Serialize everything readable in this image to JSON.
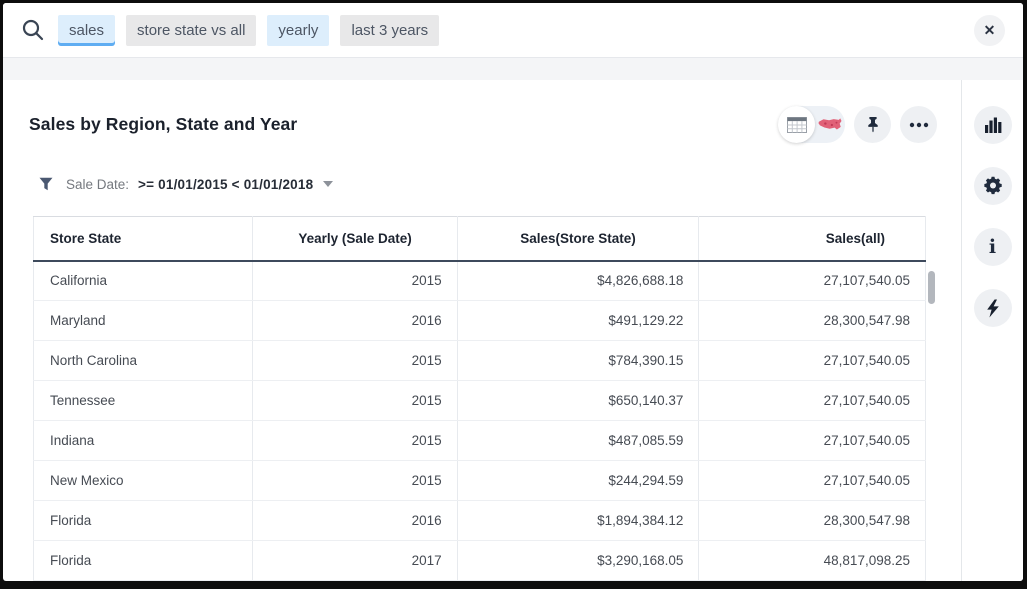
{
  "search_bar": {
    "tokens": [
      {
        "label": "sales",
        "style": "blue",
        "active": true
      },
      {
        "label": "store state vs all",
        "style": "gray",
        "active": false
      },
      {
        "label": "yearly",
        "style": "blue",
        "active": false
      },
      {
        "label": "last 3 years",
        "style": "gray",
        "active": false
      }
    ],
    "close_glyph": "✕"
  },
  "answer": {
    "title": "Sales by Region, State and Year",
    "filter": {
      "label": "Sale Date:",
      "value": ">= 01/01/2015 < 01/01/2018"
    }
  },
  "table": {
    "columns": [
      {
        "label": "Store State",
        "header_align": "left",
        "cell_align": "left"
      },
      {
        "label": "Yearly (Sale Date)",
        "header_align": "center",
        "cell_align": "right"
      },
      {
        "label": "Sales(Store State)",
        "header_align": "center",
        "cell_align": "right"
      },
      {
        "label": "Sales(all)",
        "header_align": "right-pad",
        "cell_align": "right"
      }
    ],
    "rows": [
      [
        "California",
        "2015",
        "$4,826,688.18",
        "27,107,540.05"
      ],
      [
        "Maryland",
        "2016",
        "$491,129.22",
        "28,300,547.98"
      ],
      [
        "North Carolina",
        "2015",
        "$784,390.15",
        "27,107,540.05"
      ],
      [
        "Tennessee",
        "2015",
        "$650,140.37",
        "27,107,540.05"
      ],
      [
        "Indiana",
        "2015",
        "$487,085.59",
        "27,107,540.05"
      ],
      [
        "New Mexico",
        "2015",
        "$244,294.59",
        "27,107,540.05"
      ],
      [
        "Florida",
        "2016",
        "$1,894,384.12",
        "28,300,547.98"
      ],
      [
        "Florida",
        "2017",
        "$3,290,168.05",
        "48,817,098.25"
      ]
    ]
  },
  "icons": {
    "search": "search-icon",
    "close": "close-icon",
    "table_view": "table-view-icon",
    "map_view": "map-view-icon",
    "pin": "pin-icon",
    "more": "more-options-icon",
    "filter": "filter-icon",
    "caret": "caret-down-icon",
    "chart": "chart-icon",
    "settings": "gear-icon",
    "info": "info-icon",
    "spark": "lightning-icon",
    "info_glyph": "i"
  },
  "colors": {
    "accent_blue": "#5fadf2",
    "token_blue_bg": "#ddeefc",
    "token_gray_bg": "#e8e8e9",
    "icon_navy": "#202b3d",
    "map_pink": "#e16178",
    "header_border": "#3e4a5c"
  }
}
